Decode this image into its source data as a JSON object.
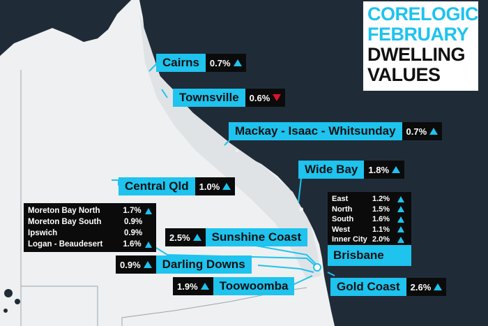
{
  "title": {
    "line1": "CORELOGIC",
    "line2": "FEBRUARY",
    "line3": "DWELLING",
    "line4": "VALUES"
  },
  "colors": {
    "accent": "#1ec3ee",
    "up": "#1ec3ee",
    "down": "#e0102a",
    "sea": "#1f2c38",
    "land": "#eef0f1"
  },
  "regions": {
    "cairns": {
      "name": "Cairns",
      "value": "0.7%",
      "trend": "up"
    },
    "townsville": {
      "name": "Townsville",
      "value": "0.6%",
      "trend": "down"
    },
    "mackay": {
      "name": "Mackay - Isaac - Whitsunday",
      "value": "0.7%",
      "trend": "up"
    },
    "widebay": {
      "name": "Wide Bay",
      "value": "1.8%",
      "trend": "up"
    },
    "centralqld": {
      "name": "Central Qld",
      "value": "1.0%",
      "trend": "up"
    },
    "sunshine": {
      "name": "Sunshine Coast",
      "value": "2.5%",
      "trend": "up"
    },
    "darling": {
      "name": "Darling Downs",
      "value": "0.9%",
      "trend": "up"
    },
    "toowoomba": {
      "name": "Toowoomba",
      "value": "1.9%",
      "trend": "up"
    },
    "goldcoast": {
      "name": "Gold Coast",
      "value": "2.6%",
      "trend": "up"
    }
  },
  "moreton": [
    {
      "name": "Moreton Bay North",
      "value": "1.7%",
      "trend": "up"
    },
    {
      "name": "Moreton Bay South",
      "value": "0.9%",
      "trend": "none"
    },
    {
      "name": "Ipswich",
      "value": "0.9%",
      "trend": "none"
    },
    {
      "name": "Logan - Beaudesert",
      "value": "1.6%",
      "trend": "up"
    }
  ],
  "brisbane": {
    "name": "Brisbane",
    "rows": [
      {
        "name": "East",
        "value": "1.2%",
        "trend": "up"
      },
      {
        "name": "North",
        "value": "1.5%",
        "trend": "up"
      },
      {
        "name": "South",
        "value": "1.6%",
        "trend": "up"
      },
      {
        "name": "West",
        "value": "1.1%",
        "trend": "up"
      },
      {
        "name": "Inner City",
        "value": "2.0%",
        "trend": "up"
      }
    ]
  }
}
